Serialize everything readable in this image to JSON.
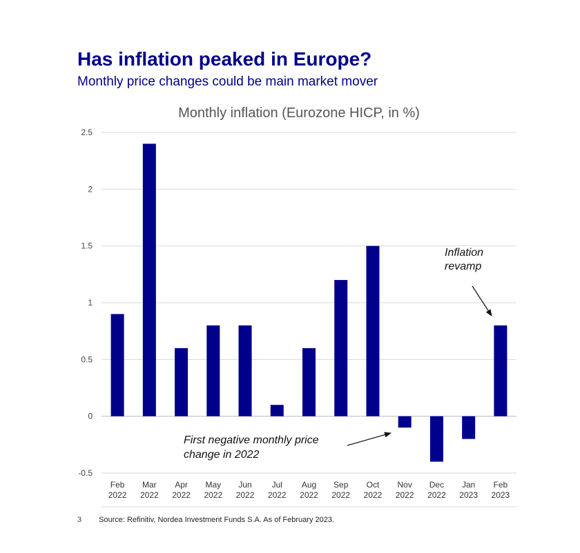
{
  "slide": {
    "title": "Has inflation peaked in Europe?",
    "subtitle": "Monthly price changes could be main market mover",
    "page_number": "3",
    "source": "Source: Refinitiv, Nordea Investment Funds S.A. As of February 2023."
  },
  "colors": {
    "bar": "#00008b",
    "title": "#00008b",
    "grid": "#d9d9d9"
  },
  "chart_data": {
    "type": "bar",
    "title": "Monthly inflation (Eurozone HICP, in %)",
    "categories": [
      [
        "Feb",
        "2022"
      ],
      [
        "Mar",
        "2022"
      ],
      [
        "Apr",
        "2022"
      ],
      [
        "May",
        "2022"
      ],
      [
        "Jun",
        "2022"
      ],
      [
        "Jul",
        "2022"
      ],
      [
        "Aug",
        "2022"
      ],
      [
        "Sep",
        "2022"
      ],
      [
        "Oct",
        "2022"
      ],
      [
        "Nov",
        "2022"
      ],
      [
        "Dec",
        "2022"
      ],
      [
        "Jan",
        "2023"
      ],
      [
        "Feb",
        "2023"
      ]
    ],
    "values": [
      0.9,
      2.4,
      0.6,
      0.8,
      0.8,
      0.1,
      0.6,
      1.2,
      1.5,
      -0.1,
      -0.4,
      -0.2,
      0.8
    ],
    "ylim": [
      -0.5,
      2.5
    ],
    "yticks": [
      "-0.5",
      "0",
      "0.5",
      "1",
      "1.5",
      "2",
      "2.5"
    ],
    "grid": true,
    "legend": "none",
    "annotations": [
      {
        "lines": [
          "Inflation",
          "revamp"
        ],
        "target_category": 12
      },
      {
        "lines": [
          "First negative monthly price",
          "change in 2022"
        ],
        "target_category": 9
      }
    ]
  }
}
